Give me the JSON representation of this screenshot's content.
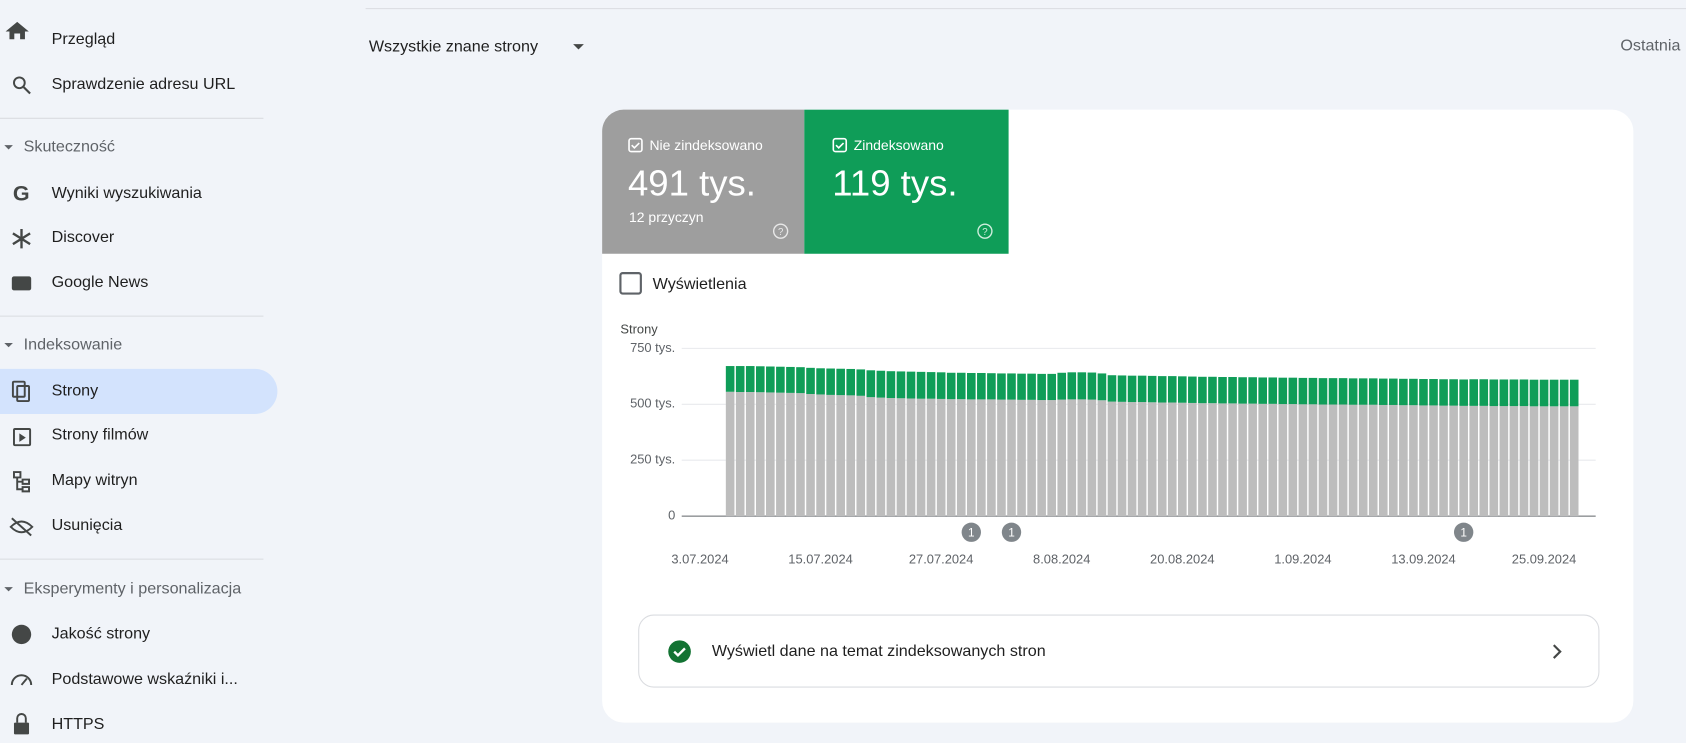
{
  "sidebar": {
    "items": [
      "Przegląd",
      "Sprawdzenie adresu URL"
    ],
    "sections": [
      {
        "title": "Skuteczność",
        "items": [
          "Wyniki wyszukiwania",
          "Discover",
          "Google News"
        ]
      },
      {
        "title": "Indeksowanie",
        "items": [
          "Strony",
          "Strony filmów",
          "Mapy witryn",
          "Usunięcia"
        ]
      },
      {
        "title": "Eksperymenty i personalizacja",
        "items": [
          "Jakość strony",
          "Podstawowe wskaźniki i...",
          "HTTPS"
        ]
      }
    ]
  },
  "header": {
    "filter": "Wszystkie znane strony",
    "range": "Ostatnia"
  },
  "cards": [
    {
      "label": "Nie zindeksowano",
      "value": "491 tys.",
      "sub": "12 przyczyn"
    },
    {
      "label": "Zindeksowano",
      "value": "119 tys."
    }
  ],
  "toggle": "Wyświetlenia",
  "chart_data": {
    "type": "stacked_bar",
    "y_label": "Strony",
    "categories": [
      "3.07.2024",
      null,
      null,
      null,
      null,
      null,
      null,
      null,
      null,
      null,
      null,
      null,
      "15.07.2024",
      null,
      null,
      null,
      null,
      null,
      null,
      null,
      null,
      null,
      null,
      null,
      "27.07.2024",
      null,
      null,
      null,
      null,
      null,
      null,
      null,
      null,
      null,
      null,
      null,
      "8.08.2024",
      null,
      null,
      null,
      null,
      null,
      null,
      null,
      null,
      null,
      null,
      null,
      "20.08.2024",
      null,
      null,
      null,
      null,
      null,
      null,
      null,
      null,
      null,
      null,
      null,
      "1.09.2024",
      null,
      null,
      null,
      null,
      null,
      null,
      null,
      null,
      null,
      null,
      null,
      "13.09.2024",
      null,
      null,
      null,
      null,
      null,
      null,
      null,
      null,
      null,
      null,
      null,
      "25.09.2024",
      null,
      null,
      null
    ],
    "series": [
      {
        "name": "Nie zindeksowano",
        "color": "#bdbdbd",
        "values": [
          null,
          null,
          null,
          556,
          555,
          555,
          554,
          553,
          552,
          551,
          550,
          546,
          544,
          542,
          541,
          540,
          538,
          532,
          530,
          528,
          527,
          526,
          525,
          525,
          524,
          523,
          523,
          522,
          522,
          522,
          521,
          521,
          520,
          520,
          519,
          519,
          521,
          522,
          522,
          521,
          518,
          512,
          511,
          510,
          510,
          509,
          508,
          508,
          507,
          506,
          505,
          505,
          504,
          504,
          503,
          503,
          502,
          502,
          501,
          501,
          500,
          500,
          499,
          499,
          499,
          498,
          498,
          498,
          497,
          497,
          496,
          496,
          495,
          495,
          494,
          494,
          493,
          493,
          493,
          492,
          492,
          492,
          492,
          491,
          491,
          491,
          491,
          491
        ]
      },
      {
        "name": "Zindeksowano",
        "color": "#0f9d58",
        "values": [
          null,
          null,
          null,
          115,
          116,
          116,
          116,
          116,
          116,
          116,
          116,
          117,
          117,
          118,
          118,
          118,
          118,
          120,
          120,
          120,
          120,
          120,
          120,
          119,
          119,
          118,
          118,
          118,
          118,
          117,
          117,
          117,
          117,
          117,
          117,
          117,
          120,
          121,
          121,
          121,
          120,
          118,
          118,
          118,
          118,
          118,
          118,
          118,
          118,
          118,
          118,
          118,
          118,
          118,
          118,
          118,
          118,
          118,
          118,
          118,
          118,
          118,
          118,
          118,
          118,
          118,
          118,
          118,
          118,
          118,
          118,
          118,
          118,
          118,
          118,
          118,
          118,
          119,
          119,
          119,
          119,
          119,
          119,
          119,
          119,
          119,
          119,
          119
        ]
      }
    ],
    "ylim": [
      0,
      750
    ],
    "yticks": [
      0,
      {
        "value": 250,
        "label": "250 tys."
      },
      {
        "value": 500,
        "label": "500 tys."
      },
      {
        "value": 750,
        "label": "750 tys."
      }
    ],
    "grid": true,
    "annotations": [
      "1",
      "1",
      "1"
    ]
  },
  "link": "Wyświetl dane na temat zindeksowanych stron"
}
